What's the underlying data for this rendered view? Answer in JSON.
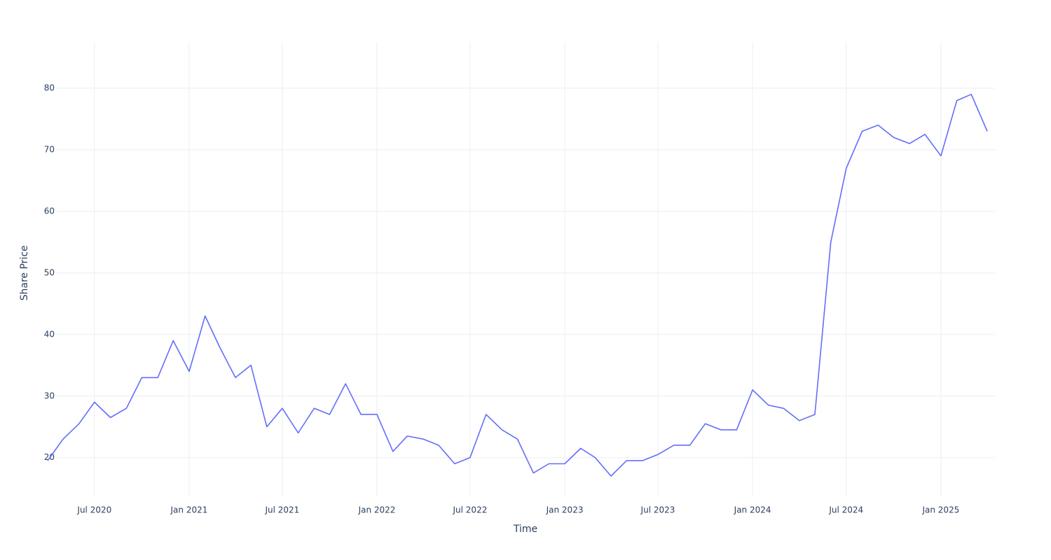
{
  "chart_data": {
    "type": "line",
    "x_label": "Time",
    "y_label": "Share Price",
    "x": [
      "2020-04",
      "2020-05",
      "2020-06",
      "2020-07",
      "2020-08",
      "2020-09",
      "2020-10",
      "2020-11",
      "2020-12",
      "2021-01",
      "2021-02",
      "2021-03",
      "2021-04",
      "2021-05",
      "2021-06",
      "2021-07",
      "2021-08",
      "2021-09",
      "2021-10",
      "2021-11",
      "2021-12",
      "2022-01",
      "2022-02",
      "2022-03",
      "2022-04",
      "2022-05",
      "2022-06",
      "2022-07",
      "2022-08",
      "2022-09",
      "2022-10",
      "2022-11",
      "2022-12",
      "2023-01",
      "2023-02",
      "2023-03",
      "2023-04",
      "2023-05",
      "2023-06",
      "2023-07",
      "2023-08",
      "2023-09",
      "2023-10",
      "2023-11",
      "2023-12",
      "2024-01",
      "2024-02",
      "2024-03",
      "2024-04",
      "2024-05",
      "2024-06",
      "2024-07",
      "2024-08",
      "2024-09",
      "2024-10",
      "2024-11",
      "2024-12",
      "2025-01",
      "2025-02",
      "2025-03",
      "2025-04"
    ],
    "series": [
      {
        "name": "Share Price",
        "color": "#636efa",
        "values": [
          19.5,
          23,
          25.5,
          29,
          26.5,
          28,
          33,
          33,
          39,
          34,
          43,
          38,
          33,
          35,
          25,
          28,
          24,
          28,
          27,
          32,
          27,
          27,
          21,
          23.5,
          23,
          22,
          19,
          20,
          27,
          24.5,
          23,
          17.5,
          19,
          19,
          21.5,
          20,
          17,
          19.5,
          19.5,
          20.5,
          22,
          22,
          25.5,
          24.5,
          24.5,
          31,
          28.5,
          28,
          26,
          27,
          55,
          67,
          73,
          74,
          72,
          71,
          72.5,
          69,
          78,
          79,
          73
        ]
      }
    ],
    "xlim": [
      "2020-04",
      "2025-05"
    ],
    "xticks": [
      {
        "value": "2020-07",
        "label": "Jul 2020"
      },
      {
        "value": "2021-01",
        "label": "Jan 2021"
      },
      {
        "value": "2021-07",
        "label": "Jul 2021"
      },
      {
        "value": "2022-01",
        "label": "Jan 2022"
      },
      {
        "value": "2022-07",
        "label": "Jul 2022"
      },
      {
        "value": "2023-01",
        "label": "Jan 2023"
      },
      {
        "value": "2023-07",
        "label": "Jul 2023"
      },
      {
        "value": "2024-01",
        "label": "Jan 2024"
      },
      {
        "value": "2024-07",
        "label": "Jul 2024"
      },
      {
        "value": "2025-01",
        "label": "Jan 2025"
      }
    ],
    "ylim": [
      13.6,
      87.5
    ],
    "yticks": [
      20,
      30,
      40,
      50,
      60,
      70,
      80
    ],
    "grid": true
  }
}
